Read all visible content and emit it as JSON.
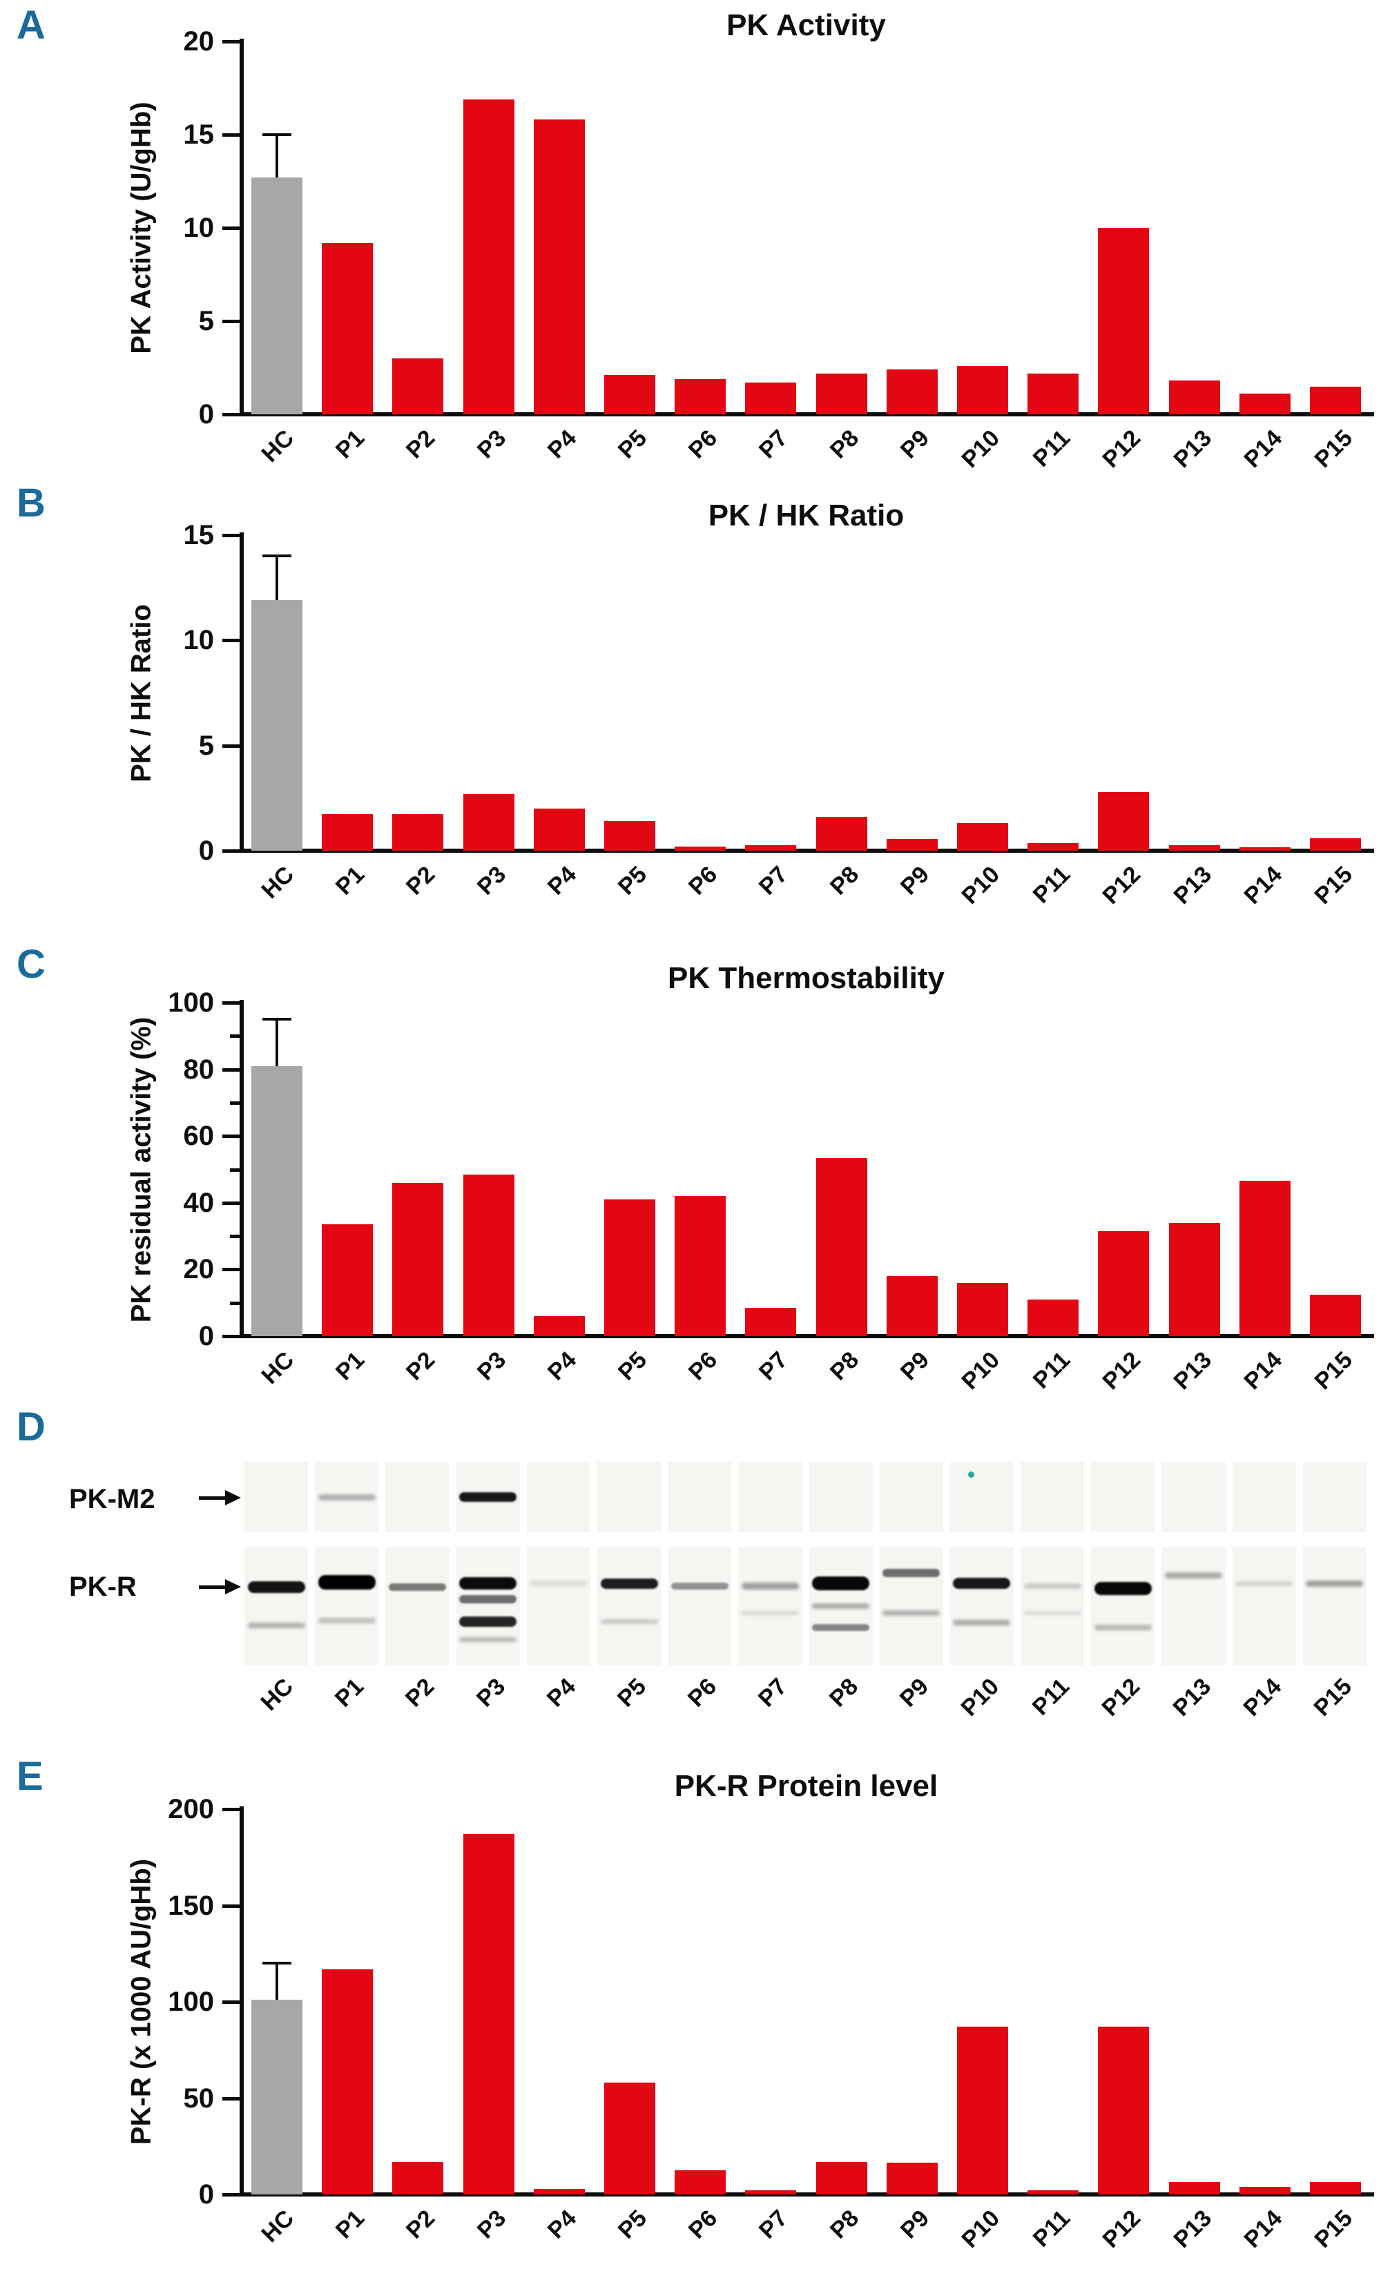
{
  "figure": {
    "panel_letter_color": "#1a6a9a",
    "axis_color": "#0d0d0d",
    "bar_color_patients": "#e30613",
    "bar_color_control": "#a9a6a6",
    "categories": [
      "HC",
      "P1",
      "P2",
      "P3",
      "P4",
      "P5",
      "P6",
      "P7",
      "P8",
      "P9",
      "P10",
      "P11",
      "P12",
      "P13",
      "P14",
      "P15"
    ]
  },
  "chart_data": [
    {
      "type": "bar",
      "panel_letter": "A",
      "title": "PK Activity",
      "ylabel": "PK Activity (U/gHb)",
      "xlabel": "",
      "categories": [
        "HC",
        "P1",
        "P2",
        "P3",
        "P4",
        "P5",
        "P6",
        "P7",
        "P8",
        "P9",
        "P10",
        "P11",
        "P12",
        "P13",
        "P14",
        "P15"
      ],
      "values": [
        12.7,
        9.2,
        3.0,
        16.9,
        15.8,
        2.1,
        1.9,
        1.7,
        2.2,
        2.4,
        2.6,
        2.2,
        10.0,
        1.8,
        1.1,
        1.5
      ],
      "hc_error_plus": 2.3,
      "ylim": [
        0,
        20
      ],
      "yticks": [
        0,
        5,
        10,
        15,
        20
      ],
      "minor_ticks": [],
      "grid": false,
      "legend": null
    },
    {
      "type": "bar",
      "panel_letter": "B",
      "title": "PK / HK Ratio",
      "ylabel": "PK / HK Ratio",
      "xlabel": "",
      "categories": [
        "HC",
        "P1",
        "P2",
        "P3",
        "P4",
        "P5",
        "P6",
        "P7",
        "P8",
        "P9",
        "P10",
        "P11",
        "P12",
        "P13",
        "P14",
        "P15"
      ],
      "values": [
        11.9,
        1.75,
        1.75,
        2.7,
        2.0,
        1.4,
        0.2,
        0.25,
        1.6,
        0.55,
        1.3,
        0.35,
        2.8,
        0.25,
        0.15,
        0.6
      ],
      "hc_error_plus": 2.1,
      "ylim": [
        0,
        15
      ],
      "yticks": [
        0,
        5,
        10,
        15
      ],
      "minor_ticks": [],
      "grid": false,
      "legend": null
    },
    {
      "type": "bar",
      "panel_letter": "C",
      "title": "PK Thermostability",
      "ylabel": "PK residual activity (%)",
      "xlabel": "",
      "categories": [
        "HC",
        "P1",
        "P2",
        "P3",
        "P4",
        "P5",
        "P6",
        "P7",
        "P8",
        "P9",
        "P10",
        "P11",
        "P12",
        "P13",
        "P14",
        "P15"
      ],
      "values": [
        81,
        33.5,
        46,
        48.5,
        6,
        41,
        42,
        8.5,
        53.5,
        18,
        16,
        11,
        31.5,
        34,
        46.5,
        12.5
      ],
      "hc_error_plus": 14,
      "ylim": [
        0,
        100
      ],
      "yticks": [
        0,
        20,
        40,
        60,
        80,
        100
      ],
      "minor_ticks": [
        10,
        30,
        50,
        70,
        90
      ],
      "grid": false,
      "legend": null
    },
    {
      "type": "bar",
      "panel_letter": "E",
      "title": "PK-R Protein level",
      "ylabel": "PK-R (x 1000 AU/gHb)",
      "xlabel": "",
      "categories": [
        "HC",
        "P1",
        "P2",
        "P3",
        "P4",
        "P5",
        "P6",
        "P7",
        "P8",
        "P9",
        "P10",
        "P11",
        "P12",
        "P13",
        "P14",
        "P15"
      ],
      "values": [
        101,
        117,
        17,
        187,
        2.7,
        58,
        12.5,
        2.3,
        17,
        16.5,
        87,
        2.3,
        87,
        6.5,
        4,
        6.5
      ],
      "hc_error_plus": 19,
      "ylim": [
        0,
        200
      ],
      "yticks": [
        0,
        50,
        100,
        150,
        200
      ],
      "minor_ticks": [],
      "grid": false,
      "legend": null
    }
  ],
  "blot": {
    "panel_letter": "D",
    "row_labels": [
      "PK-M2",
      "PK-R"
    ],
    "lanes": [
      "HC",
      "P1",
      "P2",
      "P3",
      "P4",
      "P5",
      "P6",
      "P7",
      "P8",
      "P9",
      "P10",
      "P11",
      "P12",
      "P13",
      "P14",
      "P15"
    ],
    "m2_bands": [
      0,
      0.28,
      0,
      0.9,
      0,
      0,
      0,
      0,
      0,
      0,
      0,
      0,
      0,
      0,
      0,
      0
    ],
    "m2_speck_lane": "P10",
    "r_bands": [
      [
        [
          0.34,
          0.92,
          17
        ],
        [
          0.66,
          0.28,
          8
        ]
      ],
      [
        [
          0.3,
          1.0,
          21
        ],
        [
          0.62,
          0.22,
          8
        ]
      ],
      [
        [
          0.34,
          0.5,
          11
        ]
      ],
      [
        [
          0.31,
          0.95,
          18
        ],
        [
          0.44,
          0.55,
          12
        ],
        [
          0.63,
          0.85,
          15
        ],
        [
          0.78,
          0.25,
          7
        ]
      ],
      [
        [
          0.31,
          0.1,
          8
        ]
      ],
      [
        [
          0.31,
          0.88,
          15
        ],
        [
          0.63,
          0.18,
          7
        ]
      ],
      [
        [
          0.33,
          0.4,
          10
        ]
      ],
      [
        [
          0.33,
          0.35,
          10
        ],
        [
          0.56,
          0.12,
          6
        ]
      ],
      [
        [
          0.31,
          0.97,
          20
        ],
        [
          0.5,
          0.3,
          8
        ],
        [
          0.68,
          0.45,
          10
        ]
      ],
      [
        [
          0.22,
          0.55,
          12
        ],
        [
          0.56,
          0.28,
          8
        ]
      ],
      [
        [
          0.31,
          0.9,
          16
        ],
        [
          0.64,
          0.3,
          8
        ]
      ],
      [
        [
          0.33,
          0.18,
          8
        ],
        [
          0.56,
          0.1,
          6
        ]
      ],
      [
        [
          0.35,
          0.97,
          19
        ],
        [
          0.68,
          0.25,
          8
        ]
      ],
      [
        [
          0.24,
          0.3,
          9
        ]
      ],
      [
        [
          0.31,
          0.15,
          7
        ]
      ],
      [
        [
          0.31,
          0.35,
          9
        ]
      ]
    ]
  }
}
